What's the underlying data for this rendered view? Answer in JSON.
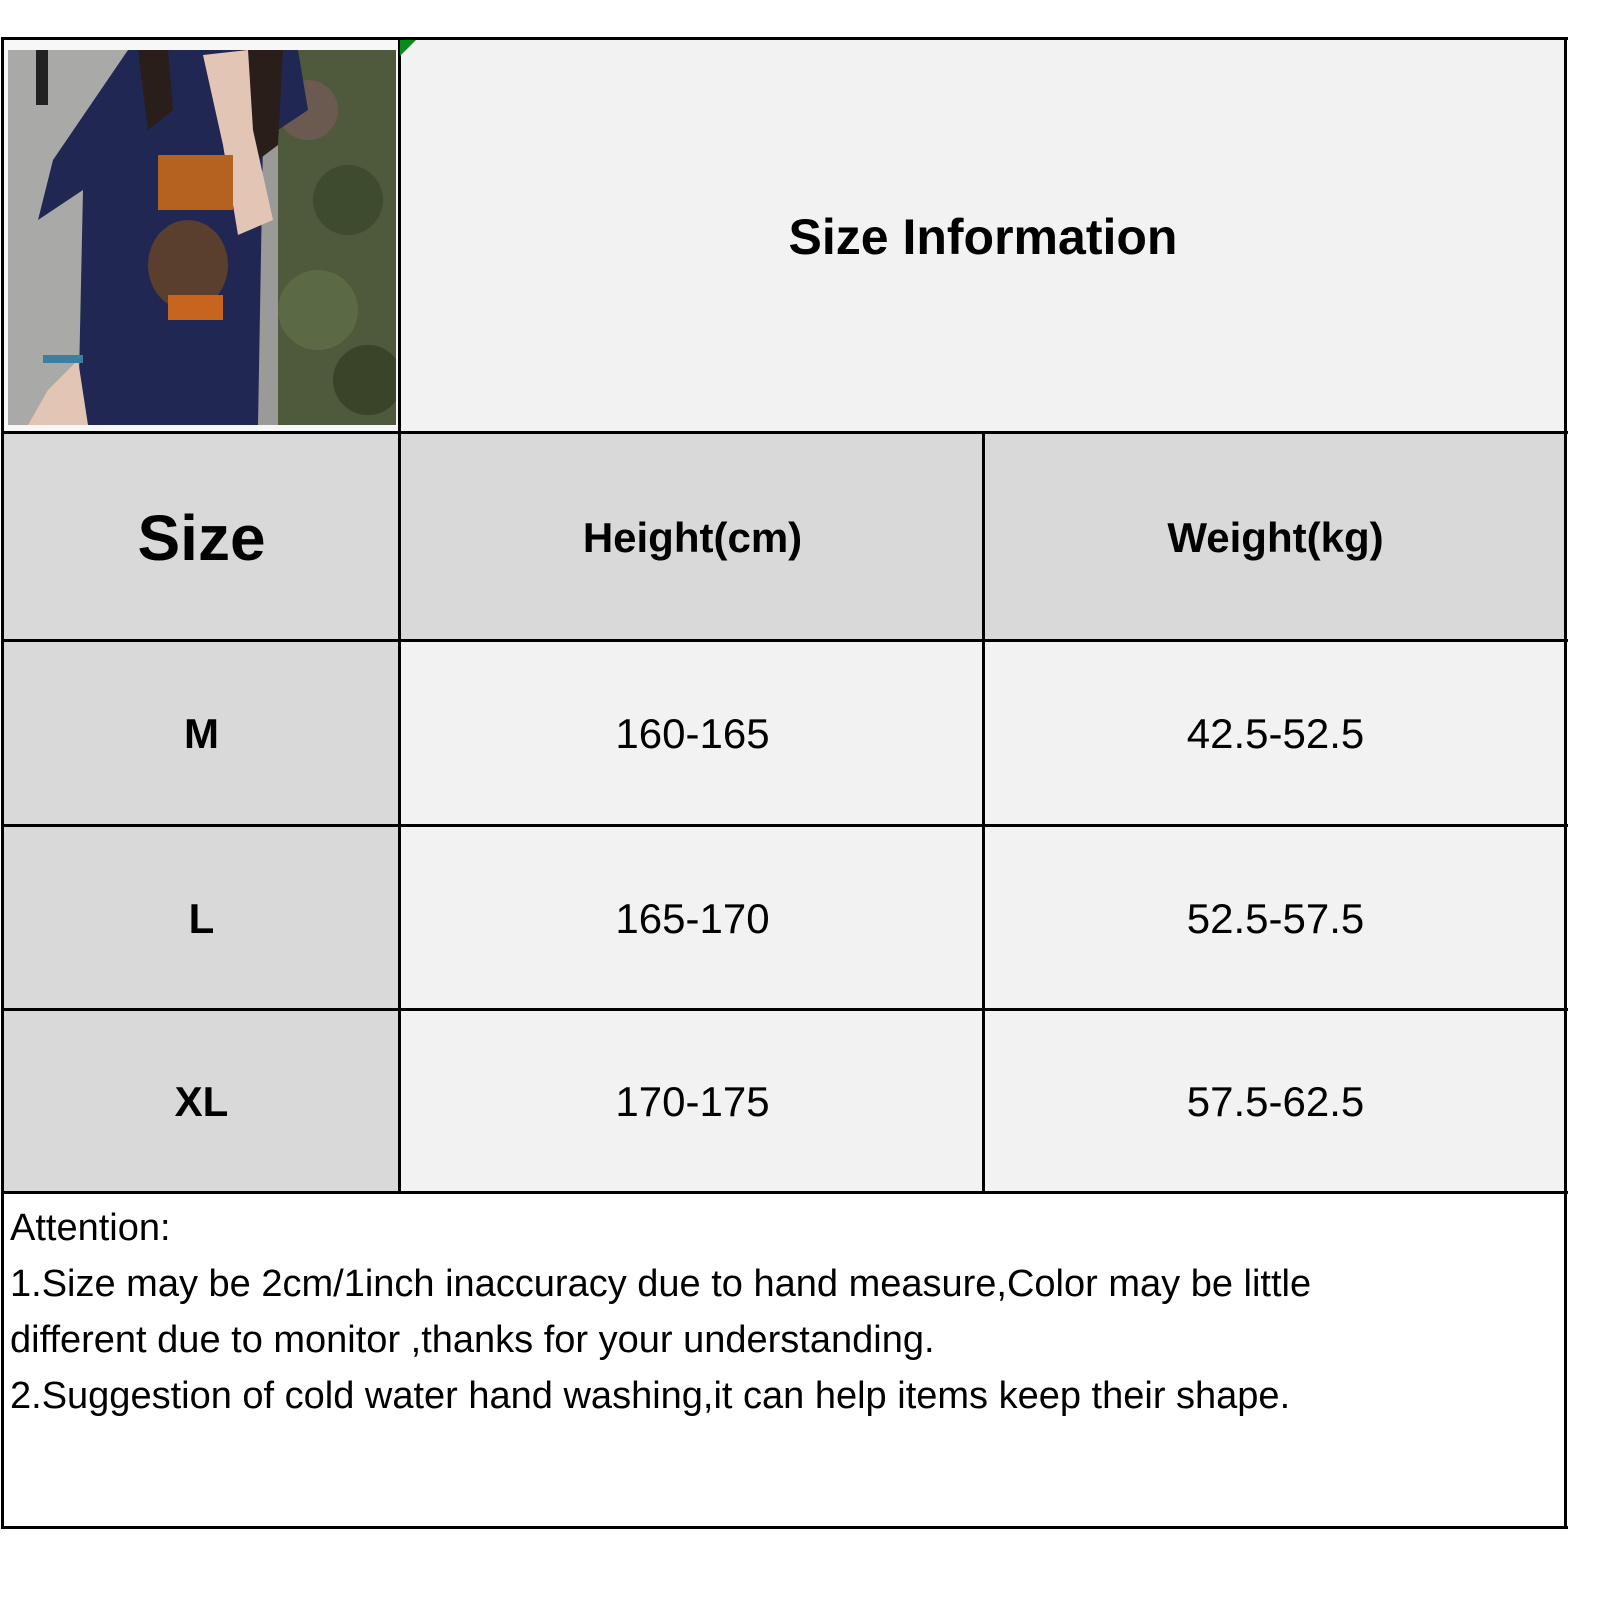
{
  "title": "Size Information",
  "photo": {
    "description_icon": "product-photo",
    "colors": {
      "shirt": "#1f2752",
      "print": "#b5611f"
    }
  },
  "table": {
    "headers": [
      "Size",
      "Height(cm)",
      "Weight(kg)"
    ],
    "rows": [
      [
        "M",
        "160-165",
        "42.5-52.5"
      ],
      [
        "L",
        "165-170",
        "52.5-57.5"
      ],
      [
        "XL",
        "170-175",
        "57.5-62.5"
      ]
    ]
  },
  "notes": {
    "heading": "Attention:",
    "line1": "1.Size may be 2cm/1inch inaccuracy due to hand measure,Color may be little",
    "line2": "different due to monitor ,thanks for your understanding.",
    "line3": "2.Suggestion of cold water hand washing,it can help items keep their shape."
  },
  "colors": {
    "header_bg": "#d9d9d9",
    "cell_bg": "#f2f2f2",
    "border": "#000000"
  }
}
